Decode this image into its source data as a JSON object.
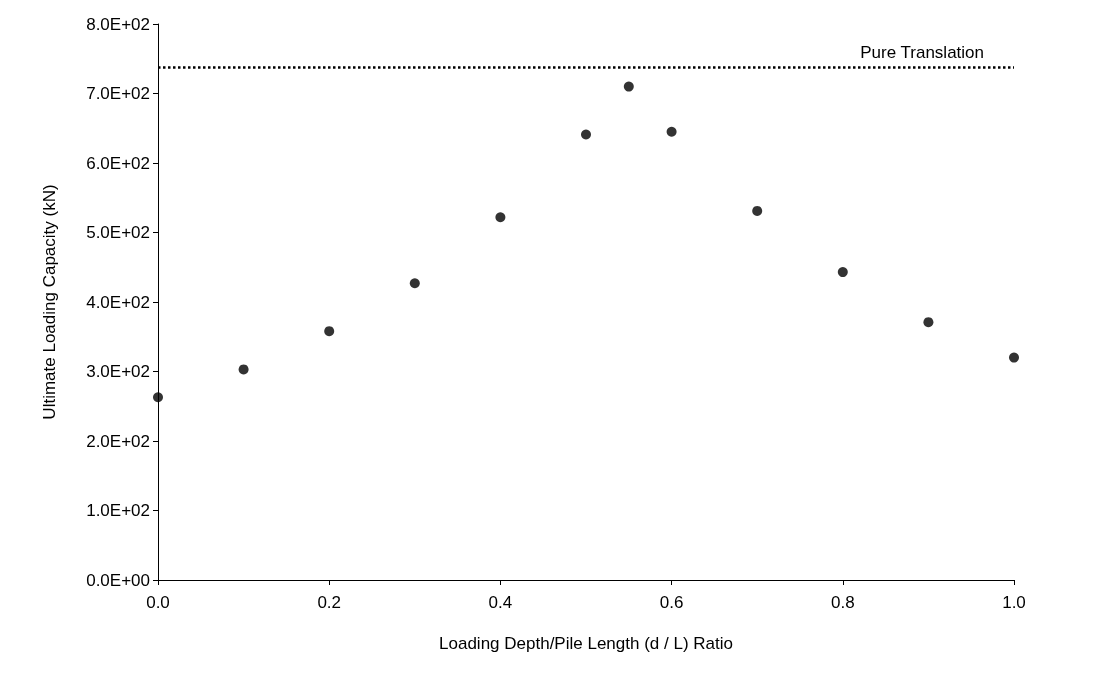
{
  "chart_data": {
    "type": "scatter",
    "xlabel": "Loading Depth/Pile Length (d / L) Ratio",
    "ylabel": "Ultimate Loading Capacity (kN)",
    "x": [
      0,
      0.1,
      0.2,
      0.3,
      0.4,
      0.5,
      0.55,
      0.6,
      0.7,
      0.8,
      0.9,
      1.0
    ],
    "series": [
      {
        "color": "#000000",
        "values": [
          263,
          303,
          358,
          427,
          522,
          641,
          710,
          645,
          531,
          443,
          371,
          320
        ]
      }
    ],
    "xlim": [
      0,
      1
    ],
    "xticks": [
      {
        "value": 0,
        "label": "0.0"
      },
      {
        "value": 0.2,
        "label": "0.2"
      },
      {
        "value": 0.4,
        "label": "0.4"
      },
      {
        "value": 0.6,
        "label": "0.6"
      },
      {
        "value": 0.8,
        "label": "0.8"
      },
      {
        "value": 1,
        "label": "1.0"
      }
    ],
    "ylim": [
      0,
      800
    ],
    "yticks": [
      {
        "value": 0,
        "label": "0.0E+00"
      },
      {
        "value": 100,
        "label": "1.0E+02"
      },
      {
        "value": 200,
        "label": "2.0E+02"
      },
      {
        "value": 300,
        "label": "3.0E+02"
      },
      {
        "value": 400,
        "label": "4.0E+02"
      },
      {
        "value": 500,
        "label": "5.0E+02"
      },
      {
        "value": 600,
        "label": "6.0E+02"
      },
      {
        "value": 700,
        "label": "7.0E+02"
      },
      {
        "value": 800,
        "label": "8.0E+02"
      }
    ],
    "ref_lines": [
      {
        "axis": "y",
        "value": 738,
        "label": "Pure Translation",
        "color": "#000000",
        "line_style": "dotted"
      }
    ],
    "grid": false,
    "marker": "circle"
  }
}
